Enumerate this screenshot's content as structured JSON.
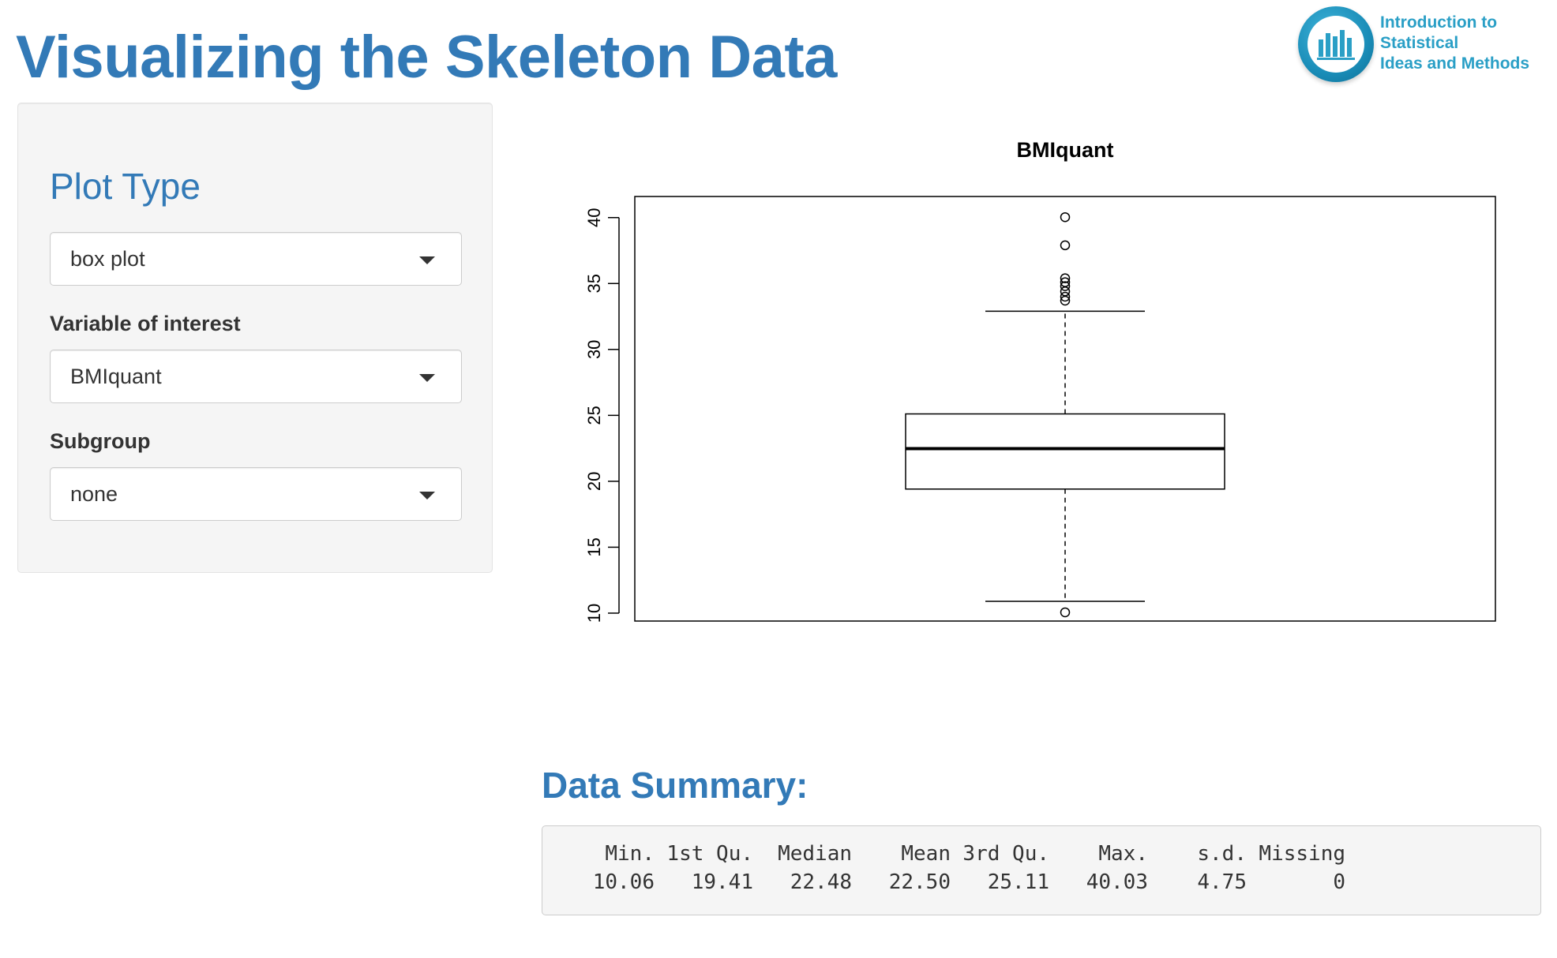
{
  "header": {
    "title": "Visualizing the Skeleton Data",
    "logo_lines": [
      "Introduction to",
      "Statistical",
      "Ideas and Methods"
    ]
  },
  "sidebar": {
    "plot_type_heading": "Plot Type",
    "plot_type_select": {
      "value": "box plot"
    },
    "variable_label": "Variable of interest",
    "variable_select": {
      "value": "BMIquant"
    },
    "subgroup_label": "Subgroup",
    "subgroup_select": {
      "value": "none"
    }
  },
  "chart_data": {
    "type": "boxplot",
    "title": "BMIquant",
    "xlabel": "",
    "ylabel": "",
    "ylim": [
      9.4,
      41.6
    ],
    "yticks": [
      10,
      15,
      20,
      25,
      30,
      35,
      40
    ],
    "grid": false,
    "box": {
      "whisker_low": 10.9,
      "q1": 19.41,
      "median": 22.48,
      "q3": 25.11,
      "whisker_high": 32.9
    },
    "outliers": [
      10.06,
      33.7,
      34.0,
      34.4,
      34.8,
      35.1,
      35.4,
      37.9,
      40.03
    ]
  },
  "summary": {
    "heading": "Data Summary:",
    "headers": [
      "Min.",
      "1st Qu.",
      "Median",
      "Mean",
      "3rd Qu.",
      "Max.",
      "s.d.",
      "Missing"
    ],
    "values": [
      "10.06",
      "19.41",
      "22.48",
      "22.50",
      "25.11",
      "40.03",
      "4.75",
      "0"
    ]
  },
  "colors": {
    "accent": "#337ab7",
    "logo": "#2a9fc6",
    "panel": "#f5f5f5"
  }
}
